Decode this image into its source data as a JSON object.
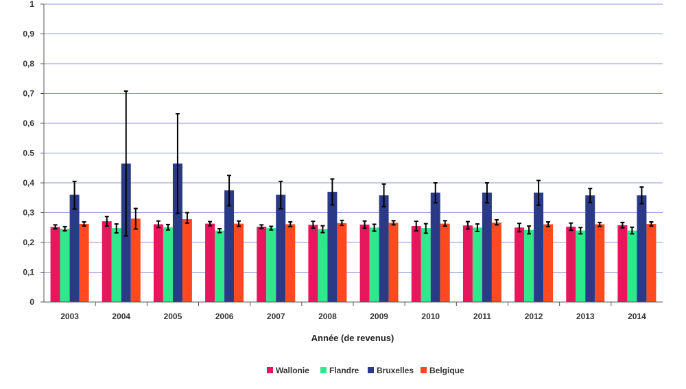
{
  "chart_data": {
    "type": "bar",
    "categories": [
      "2003",
      "2004",
      "2005",
      "2006",
      "2007",
      "2008",
      "2009",
      "2010",
      "2011",
      "2012",
      "2013",
      "2014"
    ],
    "xlabel": "Année (de revenus)",
    "ylabel": "",
    "ylim": [
      0,
      1
    ],
    "yticks": [
      {
        "value": 0,
        "label": "0"
      },
      {
        "value": 0.1,
        "label": "0,1"
      },
      {
        "value": 0.2,
        "label": "0,2"
      },
      {
        "value": 0.3,
        "label": "0,3"
      },
      {
        "value": 0.4,
        "label": "0,4"
      },
      {
        "value": 0.5,
        "label": "0.5"
      },
      {
        "value": 0.6,
        "label": "0,6"
      },
      {
        "value": 0.7,
        "label": "0,7"
      },
      {
        "value": 0.8,
        "label": "0,8"
      },
      {
        "value": 0.9,
        "label": "0,9"
      },
      {
        "value": 1,
        "label": "1"
      }
    ],
    "grid": true,
    "legend_position": "bottom",
    "series": [
      {
        "name": "Wallonie",
        "color": "#e6175c",
        "values": [
          0.252,
          0.271,
          0.261,
          0.263,
          0.253,
          0.259,
          0.26,
          0.255,
          0.257,
          0.25,
          0.253,
          0.258
        ],
        "err_low": [
          0.246,
          0.255,
          0.25,
          0.256,
          0.247,
          0.248,
          0.248,
          0.239,
          0.245,
          0.236,
          0.241,
          0.249
        ],
        "err_high": [
          0.259,
          0.287,
          0.272,
          0.27,
          0.259,
          0.271,
          0.272,
          0.271,
          0.27,
          0.264,
          0.265,
          0.267
        ]
      },
      {
        "name": "Flandre",
        "color": "#2ee88b",
        "values": [
          0.246,
          0.248,
          0.251,
          0.24,
          0.248,
          0.245,
          0.25,
          0.248,
          0.25,
          0.242,
          0.24,
          0.24
        ],
        "err_low": [
          0.239,
          0.232,
          0.242,
          0.233,
          0.242,
          0.233,
          0.238,
          0.231,
          0.237,
          0.229,
          0.229,
          0.229
        ],
        "err_high": [
          0.253,
          0.262,
          0.26,
          0.246,
          0.254,
          0.256,
          0.261,
          0.263,
          0.262,
          0.255,
          0.25,
          0.251
        ]
      },
      {
        "name": "Bruxelles",
        "color": "#2b3a86",
        "values": [
          0.36,
          0.465,
          0.465,
          0.375,
          0.36,
          0.37,
          0.358,
          0.367,
          0.367,
          0.367,
          0.358,
          0.358
        ],
        "err_low": [
          0.312,
          0.222,
          0.298,
          0.323,
          0.313,
          0.326,
          0.32,
          0.333,
          0.333,
          0.325,
          0.334,
          0.33
        ],
        "err_high": [
          0.405,
          0.708,
          0.632,
          0.425,
          0.405,
          0.413,
          0.396,
          0.4,
          0.4,
          0.408,
          0.381,
          0.386
        ]
      },
      {
        "name": "Belgique",
        "color": "#ff4a1f",
        "values": [
          0.262,
          0.28,
          0.278,
          0.263,
          0.261,
          0.265,
          0.266,
          0.263,
          0.267,
          0.261,
          0.261,
          0.262
        ],
        "err_low": [
          0.255,
          0.245,
          0.265,
          0.254,
          0.253,
          0.257,
          0.259,
          0.255,
          0.259,
          0.253,
          0.254,
          0.255
        ],
        "err_high": [
          0.269,
          0.314,
          0.3,
          0.272,
          0.269,
          0.274,
          0.273,
          0.273,
          0.276,
          0.269,
          0.267,
          0.269
        ]
      }
    ]
  }
}
